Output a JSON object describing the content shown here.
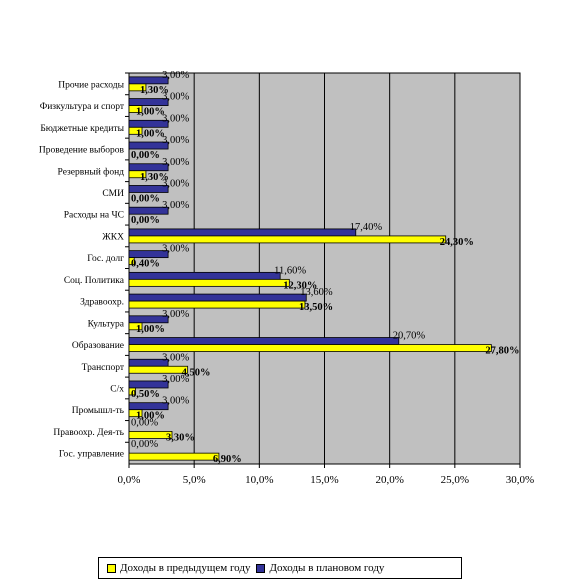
{
  "chart_data": {
    "type": "bar",
    "orientation": "horizontal",
    "categories": [
      "Гос. управление",
      "Правоохр. Дея-ть",
      "Промышл-ть",
      "С/х",
      "Транспорт",
      "Образование",
      "Культура",
      "Здравоохр.",
      "Соц. Политика",
      "Гос. долг",
      "ЖКХ",
      "Расходы на ЧС",
      "СМИ",
      "Резервный фонд",
      "Проведение выборов",
      "Бюджетные кредиты",
      "Физкультура и спорт",
      "Прочие расходы"
    ],
    "category_labels_shown": [
      "Гос. управление",
      "Правоохр. Дея-ть",
      "Промышл-ть",
      "С/х",
      "Транспорт",
      "Образование",
      "Культура",
      "Здравоохр.",
      "Соц. Политика",
      "Гос. долг",
      "ЖКХ",
      "Расходы на ЧС",
      "СМИ",
      "Резервный фонд",
      "Проведение выборов",
      "Бюджетные кредиты",
      "Физкультура и спорт",
      "Прочие расходы"
    ],
    "series": [
      {
        "name": "Доходы в предыдущем году",
        "color": "#ffff00",
        "values": [
          6.9,
          3.3,
          1.0,
          0.5,
          4.5,
          27.8,
          1.0,
          13.5,
          12.3,
          0.4,
          24.3,
          0.0,
          0.0,
          1.3,
          0.0,
          1.0,
          1.0,
          1.3
        ],
        "labels": [
          "6,90%",
          "3,30%",
          "1,00%",
          "0,50%",
          "4,50%",
          "27,80%",
          "1,00%",
          "13,50%",
          "12,30%",
          "0,40%",
          "24,30%",
          "0,00%",
          "0,00%",
          "1,30%",
          "0,00%",
          "1,00%",
          "1,00%",
          "1,30%"
        ]
      },
      {
        "name": "Доходы в плановом году",
        "color": "#333399",
        "values": [
          0.0,
          0.0,
          3.0,
          3.0,
          3.0,
          20.7,
          3.0,
          13.6,
          11.6,
          3.0,
          17.4,
          3.0,
          3.0,
          3.0,
          3.0,
          3.0,
          3.0,
          3.0
        ],
        "labels": [
          "0,00%",
          "0,00%",
          "3,00%",
          "3,00%",
          "3,00%",
          "20,70%",
          "3,00%",
          "13,60%",
          "11,60%",
          "3,00%",
          "17,40%",
          "3,00%",
          "3,00%",
          "3,00%",
          "3,00%",
          "3,00%",
          "3,00%",
          "3,00%"
        ]
      }
    ],
    "x_ticks": [
      "0,0%",
      "5,0%",
      "10,0%",
      "15,0%",
      "20,0%",
      "25,0%",
      "30,0%"
    ],
    "xlim": [
      0,
      30
    ],
    "grid": true,
    "plot_background": "#c0c0c0",
    "legend_position": "bottom"
  }
}
